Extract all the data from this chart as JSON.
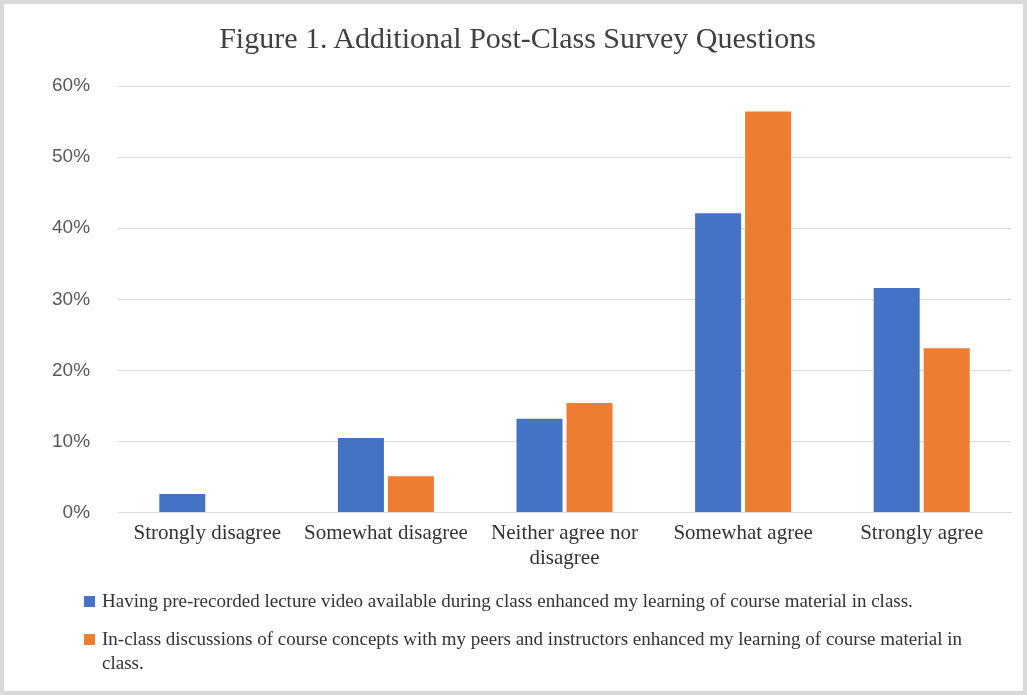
{
  "chart_data": {
    "type": "bar",
    "title": "Figure 1. Additional Post-Class Survey Questions",
    "categories": [
      "Strongly disagree",
      "Somewhat disagree",
      "Neither agree nor disagree",
      "Somewhat agree",
      "Strongly agree"
    ],
    "series": [
      {
        "name": "Having pre-recorded lecture video available during class enhanced my learning of course material in class.",
        "color": "#4472c4",
        "values": [
          2.6,
          10.5,
          13.2,
          42.1,
          31.6
        ]
      },
      {
        "name": "In-class discussions of course concepts with my peers and instructors enhanced my learning of course material in class.",
        "color": "#ed7d31",
        "values": [
          0,
          5.1,
          15.4,
          56.4,
          23.1
        ]
      }
    ],
    "ylim": [
      0,
      60
    ],
    "yticks": [
      {
        "value": 0,
        "label": "0%"
      },
      {
        "value": 10,
        "label": "10%"
      },
      {
        "value": 20,
        "label": "20%"
      },
      {
        "value": 30,
        "label": "30%"
      },
      {
        "value": 40,
        "label": "40%"
      },
      {
        "value": 50,
        "label": "50%"
      },
      {
        "value": 60,
        "label": "60%"
      }
    ],
    "grid": "y",
    "legend": "bottom"
  }
}
